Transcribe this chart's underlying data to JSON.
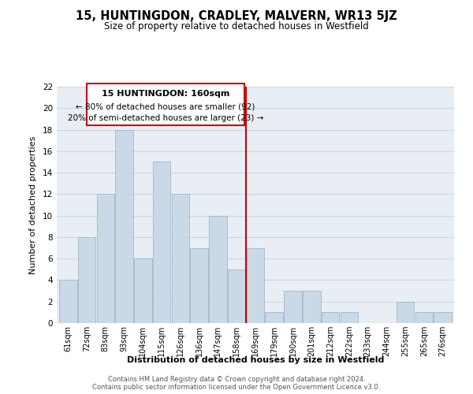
{
  "title": "15, HUNTINGDON, CRADLEY, MALVERN, WR13 5JZ",
  "subtitle": "Size of property relative to detached houses in Westfield",
  "xlabel": "Distribution of detached houses by size in Westfield",
  "ylabel": "Number of detached properties",
  "footer_line1": "Contains HM Land Registry data © Crown copyright and database right 2024.",
  "footer_line2": "Contains public sector information licensed under the Open Government Licence v3.0.",
  "categories": [
    "61sqm",
    "72sqm",
    "83sqm",
    "93sqm",
    "104sqm",
    "115sqm",
    "126sqm",
    "136sqm",
    "147sqm",
    "158sqm",
    "169sqm",
    "179sqm",
    "190sqm",
    "201sqm",
    "212sqm",
    "222sqm",
    "233sqm",
    "244sqm",
    "255sqm",
    "265sqm",
    "276sqm"
  ],
  "values": [
    4,
    8,
    12,
    18,
    6,
    15,
    12,
    7,
    10,
    5,
    7,
    1,
    3,
    3,
    1,
    1,
    0,
    0,
    2,
    1,
    1
  ],
  "bar_color": "#c9d9e8",
  "bar_edge_color": "#aabccc",
  "ylim": [
    0,
    22
  ],
  "yticks": [
    0,
    2,
    4,
    6,
    8,
    10,
    12,
    14,
    16,
    18,
    20,
    22
  ],
  "vline_x_index": 9.5,
  "vline_color": "#cc0000",
  "annotation_title": "15 HUNTINGDON: 160sqm",
  "annotation_line1": "← 80% of detached houses are smaller (92)",
  "annotation_line2": "20% of semi-detached houses are larger (23) →",
  "annotation_box_color": "#ffffff",
  "annotation_box_edge": "#cc0000",
  "grid_color": "#ccd8e4",
  "background_color": "#ffffff",
  "plot_bg_color": "#e8eef4"
}
